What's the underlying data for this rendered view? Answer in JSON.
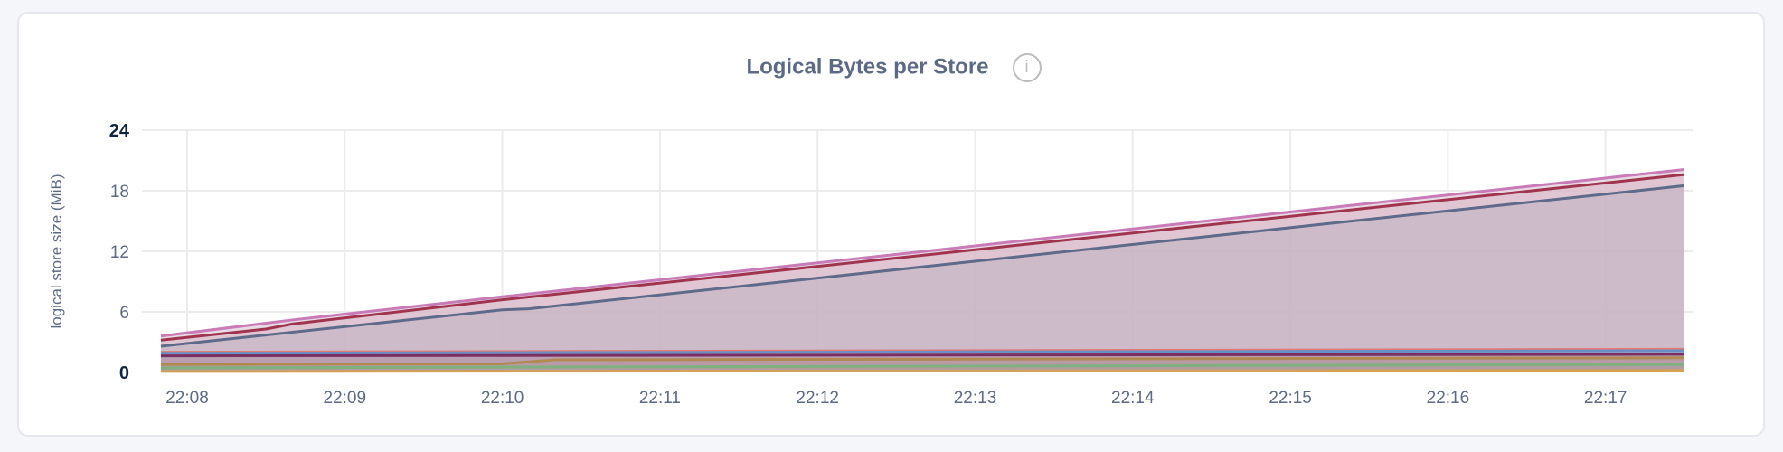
{
  "panel": {
    "title": "Logical Bytes per Store",
    "info_icon": "info-icon"
  },
  "chart_data": {
    "type": "area",
    "title": "Logical Bytes per Store",
    "xlabel": "",
    "ylabel": "logical store size (MiB)",
    "ylim": [
      0,
      24
    ],
    "yticks": [
      "0",
      "6",
      "12",
      "18",
      "24"
    ],
    "xticks": [
      "22:08",
      "22:09",
      "22:10",
      "22:11",
      "22:12",
      "22:13",
      "22:14",
      "22:15",
      "22:16",
      "22:17"
    ],
    "xlim": [
      "22:07:50",
      "22:17:30"
    ],
    "grid": true,
    "fill_color": "#e5d5df",
    "series": [
      {
        "color": "#c97bb8",
        "x": [
          "22:07:50",
          "22:08:40",
          "22:10:00",
          "22:17:30"
        ],
        "y": [
          3.6,
          5.2,
          7.5,
          20.1
        ]
      },
      {
        "color": "#a0344f",
        "x": [
          "22:07:50",
          "22:08:30",
          "22:08:40",
          "22:10:00",
          "22:17:30"
        ],
        "y": [
          3.2,
          4.3,
          4.8,
          7.2,
          19.6
        ]
      },
      {
        "color": "#5e6a8a",
        "x": [
          "22:07:50",
          "22:10:00",
          "22:10:10",
          "22:17:30"
        ],
        "y": [
          2.6,
          6.2,
          6.3,
          18.5
        ]
      },
      {
        "color": "#e07a73",
        "x": [
          "22:07:50",
          "22:17:30"
        ],
        "y": [
          2.0,
          2.3
        ]
      },
      {
        "color": "#6a8fc7",
        "x": [
          "22:07:50",
          "22:17:30"
        ],
        "y": [
          1.9,
          2.15
        ]
      },
      {
        "color": "#7a2f63",
        "x": [
          "22:07:50",
          "22:17:30"
        ],
        "y": [
          1.65,
          1.8
        ]
      },
      {
        "color": "#b08a50",
        "x": [
          "22:07:50",
          "22:10:00",
          "22:10:20",
          "22:17:30"
        ],
        "y": [
          0.8,
          0.85,
          1.25,
          1.45
        ]
      },
      {
        "color": "#7fb07f",
        "x": [
          "22:07:50",
          "22:17:30"
        ],
        "y": [
          0.45,
          0.8
        ]
      },
      {
        "color": "#d4a05a",
        "x": [
          "22:07:50",
          "22:17:30"
        ],
        "y": [
          0.1,
          0.2
        ]
      }
    ]
  }
}
